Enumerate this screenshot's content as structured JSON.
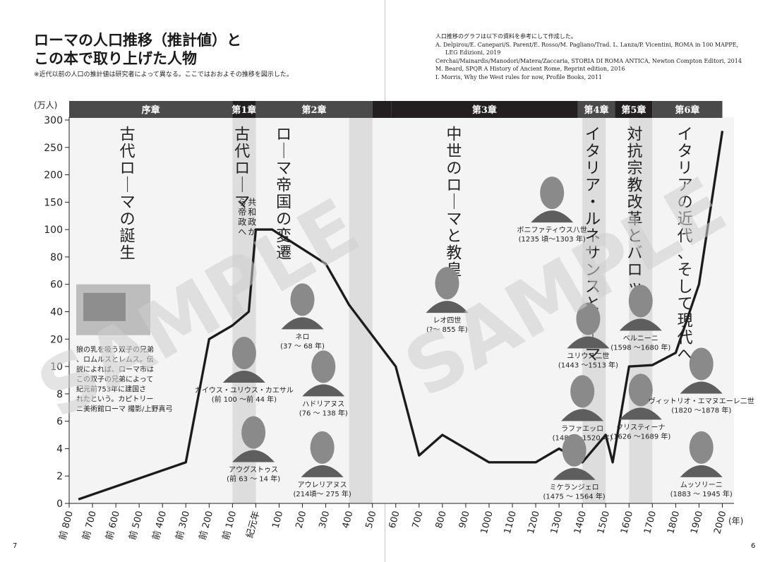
{
  "header": {
    "title_line1": "ローマの人口推移（推計値）と",
    "title_line2": "この本で取り上げた人物",
    "note": "※近代以前の人口の推計値は研究者によって異なる。ここではおおよその推移を図示した。"
  },
  "sources": {
    "heading": "人口推移のグラフは以下の資料を参考にして作成した。",
    "lines": [
      "A. Delpirou/E. Canepari/S. Parent/E. Rosso/M. Pagliano/Trad. L. Lanza/P. Vicentini, ROMA in 100 MAPPE,",
      "LEG Edizioni, 2019",
      "Cerchai/Mainardis/Manodori/Matera/Zaccaria, STORIA DI ROMA ANTICA, Newton Compton Editori, 2014",
      "M. Beard, SPQR A History of Ancient Rome, Reprint edition, 2016",
      "I. Morris, Why the West rules for now, Profile Books, 2011"
    ]
  },
  "page_numbers": {
    "left": "7",
    "right": "6"
  },
  "watermark": "SAMPLE",
  "colors": {
    "band": "#4a4a4a",
    "band_dark": "#231f20",
    "shade": "#d6d6d6",
    "line": "#1a1a1a",
    "bg": "#f4f4f4"
  },
  "chart_data": {
    "type": "line",
    "ylabel": "(万人)",
    "xlabel": "(年)",
    "y_ticks": [
      0,
      2,
      4,
      6,
      8,
      10,
      20,
      40,
      60,
      80,
      100,
      150,
      200,
      250,
      300
    ],
    "x_ticks": [
      "前 800",
      "前 700",
      "前 600",
      "前 500",
      "前 400",
      "前 300",
      "前 200",
      "前 100",
      "紀元年",
      "100",
      "200",
      "300",
      "400",
      "500",
      "600",
      "700",
      "800",
      "900",
      "1000",
      "1100",
      "1200",
      "1300",
      "1400",
      "1500",
      "1600",
      "1700",
      "1800",
      "1900",
      "2000"
    ],
    "series": [
      {
        "x": [
          -760,
          -300,
          -200,
          -100,
          -30,
          0,
          70,
          300,
          400,
          600,
          700,
          800,
          900,
          1000,
          1200,
          1300,
          1400,
          1500,
          1530,
          1600,
          1700,
          1800,
          1900,
          2000
        ],
        "y": [
          0.3,
          3,
          20,
          30,
          40,
          100,
          100,
          75,
          45,
          10,
          3.5,
          5,
          4,
          3,
          3,
          4,
          3,
          5,
          3,
          10,
          10.5,
          15,
          60,
          280
        ]
      }
    ],
    "era_bands": [
      {
        "label": "序章",
        "from": -800,
        "to": -100,
        "tone": "band"
      },
      {
        "label": "第1章",
        "from": -100,
        "to": 0,
        "tone": "band_dark"
      },
      {
        "label": "第2章",
        "from": 0,
        "to": 500,
        "tone": "band"
      },
      {
        "label": "",
        "from": 500,
        "to": 580,
        "tone": "band_dark"
      },
      {
        "label": "第3章",
        "from": 580,
        "to": 1380,
        "tone": "band_dark"
      },
      {
        "label": "第4章",
        "from": 1380,
        "to": 1540,
        "tone": "band"
      },
      {
        "label": "第5章",
        "from": 1540,
        "to": 1700,
        "tone": "band_dark"
      },
      {
        "label": "第6章",
        "from": 1700,
        "to": 2000,
        "tone": "band"
      }
    ],
    "shaded_ranges": [
      {
        "from": -100,
        "to": 0
      },
      {
        "from": 400,
        "to": 500
      },
      {
        "from": 1400,
        "to": 1500
      },
      {
        "from": 1600,
        "to": 1700
      }
    ],
    "era_titles": [
      {
        "text": "古代ローマの誕生",
        "x": -550,
        "y": 270
      },
      {
        "text": "古代ローマ",
        "x": -58,
        "y": 270,
        "sub": "共和政から帝政へ"
      },
      {
        "text": "ローマ帝国の変遷",
        "x": 120,
        "y": 270
      },
      {
        "text": "中世のローマと教皇",
        "x": 850,
        "y": 270
      },
      {
        "text": "イタリア・ルネサンスとローマ",
        "x": 1445,
        "y": 270
      },
      {
        "text": "対抗宗教改革とバロック",
        "x": 1625,
        "y": 270
      },
      {
        "text": "イタリアの近代、そして現代へ",
        "x": 1840,
        "y": 270
      }
    ],
    "annotations": [
      {
        "text": "狼の乳を吸う双子の兄弟、ロムルスとレムス。伝説によれば、ローマ市はこの双子の兄弟によって紀元前753年に建国されたという。カピトリーニ美術館ローマ 撮影/上野真弓",
        "x": -720,
        "y": 18
      },
      {
        "text": "ガイウス・ユリウス・カエサル",
        "years": "(前 100 ～前 44 年)",
        "x": -50,
        "y": 8.3
      },
      {
        "text": "アウグストゥス",
        "years": "(前 63 ～ 14 年)",
        "x": -10,
        "y": 2.5
      },
      {
        "text": "ネロ",
        "years": "(37 ～ 68 年)",
        "x": 200,
        "y": 22
      },
      {
        "text": "ハドリアヌス",
        "years": "(76 ～ 138 年)",
        "x": 290,
        "y": 7.3
      },
      {
        "text": "アウレリアヌス",
        "years": "(214頃～ 275 年)",
        "x": 285,
        "y": 1.4
      },
      {
        "text": "ボニファティウス八世",
        "years": "(1235 頃～1303 年)",
        "x": 1270,
        "y": 100
      },
      {
        "text": "レオ四世",
        "years": "(?～ 855 年)",
        "x": 820,
        "y": 34
      },
      {
        "text": "ユリウス二世",
        "years": "(1443 ～1513 年)",
        "x": 1425,
        "y": 14
      },
      {
        "text": "ラファエッロ",
        "years": "(1483 ～1520 年)",
        "x": 1400,
        "y": 5.5
      },
      {
        "text": "ミケランジェロ",
        "years": "(1475 ～ 1564 年)",
        "x": 1365,
        "y": 1.2
      },
      {
        "text": "ベルニーニ",
        "years": "(1598 ～1680 年)",
        "x": 1650,
        "y": 21
      },
      {
        "text": "クリスティーナ",
        "years": "(1626 ～1689 年)",
        "x": 1650,
        "y": 5.6
      },
      {
        "text": "ヴィットリオ・エマヌエーレ二世",
        "years": "(1820 ～1878 年)",
        "x": 1910,
        "y": 7.5
      },
      {
        "text": "ムッソリーニ",
        "years": "(1883 ～ 1945 年)",
        "x": 1910,
        "y": 1.4
      }
    ]
  }
}
